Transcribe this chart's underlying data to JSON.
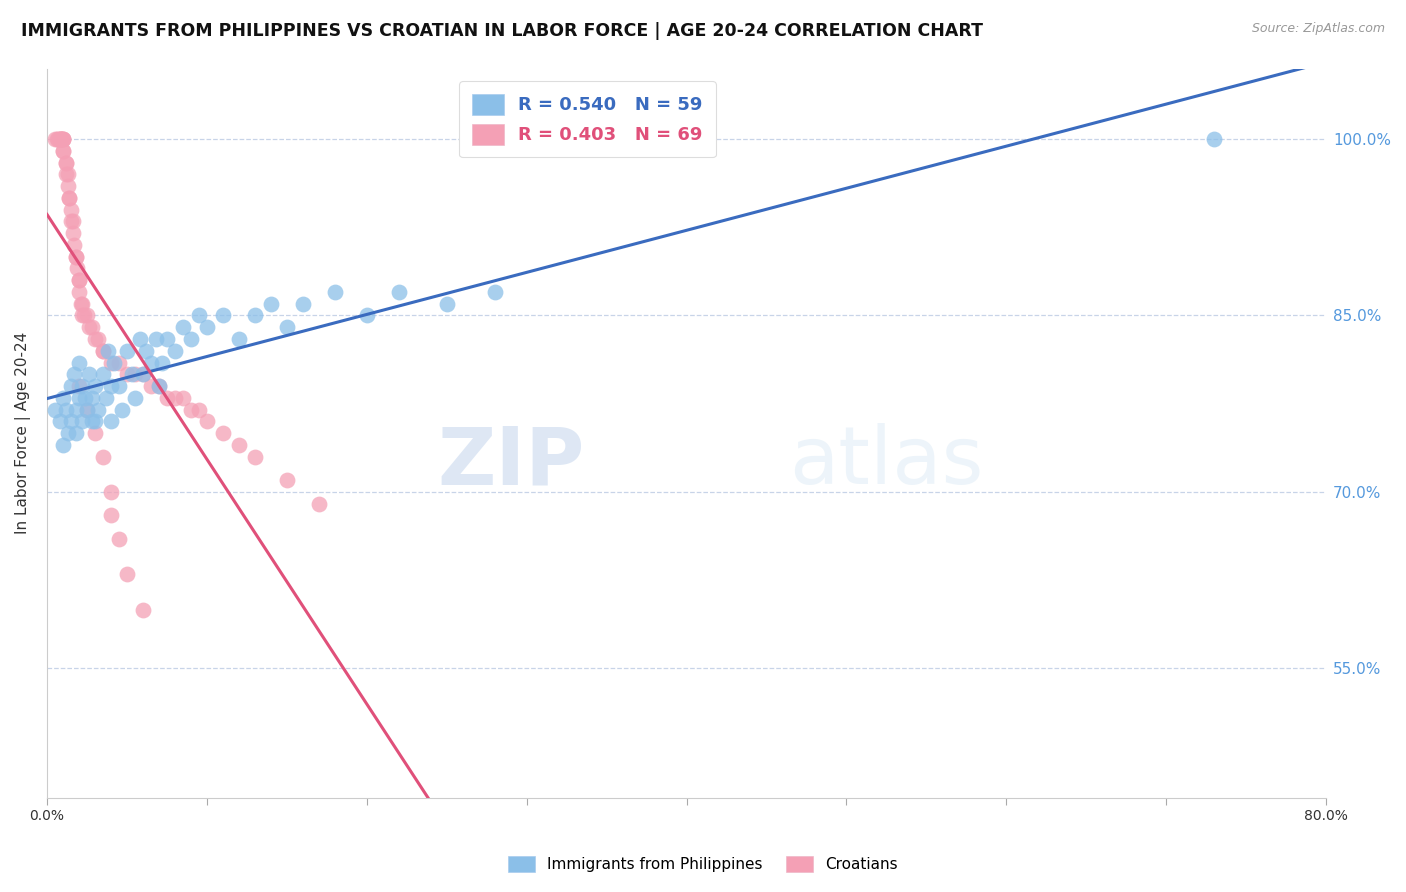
{
  "title": "IMMIGRANTS FROM PHILIPPINES VS CROATIAN IN LABOR FORCE | AGE 20-24 CORRELATION CHART",
  "source": "Source: ZipAtlas.com",
  "ylabel": "In Labor Force | Age 20-24",
  "y_ticks": [
    0.55,
    0.7,
    0.85,
    1.0
  ],
  "y_tick_labels": [
    "55.0%",
    "70.0%",
    "85.0%",
    "100.0%"
  ],
  "xlim": [
    0.0,
    0.8
  ],
  "ylim": [
    0.44,
    1.06
  ],
  "philippines_R": 0.54,
  "philippines_N": 59,
  "croatian_R": 0.403,
  "croatian_N": 69,
  "philippines_color": "#8bbfe8",
  "croatian_color": "#f4a0b5",
  "philippines_line_color": "#3a6bbf",
  "croatian_line_color": "#e0507a",
  "legend_label_philippines": "Immigrants from Philippines",
  "legend_label_croatians": "Croatians",
  "watermark_zip": "ZIP",
  "watermark_atlas": "atlas",
  "right_tick_color": "#5599dd",
  "philippines_x": [
    0.005,
    0.008,
    0.01,
    0.01,
    0.012,
    0.013,
    0.015,
    0.015,
    0.017,
    0.018,
    0.018,
    0.02,
    0.02,
    0.022,
    0.022,
    0.024,
    0.025,
    0.026,
    0.028,
    0.028,
    0.03,
    0.03,
    0.032,
    0.035,
    0.037,
    0.038,
    0.04,
    0.04,
    0.042,
    0.045,
    0.047,
    0.05,
    0.053,
    0.055,
    0.058,
    0.06,
    0.062,
    0.065,
    0.068,
    0.07,
    0.072,
    0.075,
    0.08,
    0.085,
    0.09,
    0.095,
    0.1,
    0.11,
    0.12,
    0.13,
    0.14,
    0.15,
    0.16,
    0.18,
    0.2,
    0.22,
    0.25,
    0.28,
    0.73
  ],
  "philippines_y": [
    0.77,
    0.76,
    0.74,
    0.78,
    0.77,
    0.75,
    0.79,
    0.76,
    0.8,
    0.77,
    0.75,
    0.78,
    0.81,
    0.76,
    0.79,
    0.78,
    0.77,
    0.8,
    0.76,
    0.78,
    0.79,
    0.76,
    0.77,
    0.8,
    0.78,
    0.82,
    0.79,
    0.76,
    0.81,
    0.79,
    0.77,
    0.82,
    0.8,
    0.78,
    0.83,
    0.8,
    0.82,
    0.81,
    0.83,
    0.79,
    0.81,
    0.83,
    0.82,
    0.84,
    0.83,
    0.85,
    0.84,
    0.85,
    0.83,
    0.85,
    0.86,
    0.84,
    0.86,
    0.87,
    0.85,
    0.87,
    0.86,
    0.87,
    1.0
  ],
  "croatian_x": [
    0.005,
    0.006,
    0.007,
    0.008,
    0.008,
    0.009,
    0.009,
    0.009,
    0.01,
    0.01,
    0.01,
    0.01,
    0.01,
    0.012,
    0.012,
    0.012,
    0.013,
    0.013,
    0.014,
    0.014,
    0.015,
    0.015,
    0.016,
    0.016,
    0.017,
    0.018,
    0.018,
    0.019,
    0.02,
    0.02,
    0.02,
    0.021,
    0.022,
    0.022,
    0.023,
    0.025,
    0.026,
    0.028,
    0.03,
    0.032,
    0.035,
    0.035,
    0.04,
    0.045,
    0.05,
    0.055,
    0.06,
    0.065,
    0.07,
    0.075,
    0.08,
    0.085,
    0.09,
    0.095,
    0.1,
    0.11,
    0.12,
    0.13,
    0.15,
    0.17,
    0.02,
    0.025,
    0.03,
    0.035,
    0.04,
    0.04,
    0.045,
    0.05,
    0.06
  ],
  "croatian_y": [
    1.0,
    1.0,
    1.0,
    1.0,
    1.0,
    1.0,
    1.0,
    1.0,
    1.0,
    1.0,
    1.0,
    0.99,
    0.99,
    0.98,
    0.98,
    0.97,
    0.97,
    0.96,
    0.95,
    0.95,
    0.94,
    0.93,
    0.93,
    0.92,
    0.91,
    0.9,
    0.9,
    0.89,
    0.88,
    0.88,
    0.87,
    0.86,
    0.86,
    0.85,
    0.85,
    0.85,
    0.84,
    0.84,
    0.83,
    0.83,
    0.82,
    0.82,
    0.81,
    0.81,
    0.8,
    0.8,
    0.8,
    0.79,
    0.79,
    0.78,
    0.78,
    0.78,
    0.77,
    0.77,
    0.76,
    0.75,
    0.74,
    0.73,
    0.71,
    0.69,
    0.79,
    0.77,
    0.75,
    0.73,
    0.7,
    0.68,
    0.66,
    0.63,
    0.6
  ]
}
